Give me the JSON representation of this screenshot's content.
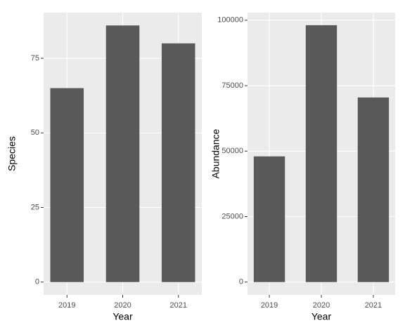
{
  "chart_data": [
    {
      "type": "bar",
      "x_label": "Year",
      "y_label": "Species",
      "categories": [
        "2019",
        "2020",
        "2021"
      ],
      "values": [
        65,
        86,
        80
      ],
      "color": "#595959",
      "ylim": [
        -4.3,
        90.3
      ],
      "yticks": [
        0,
        25,
        50,
        75
      ],
      "grid": true
    },
    {
      "type": "bar",
      "x_label": "Year",
      "y_label": "Abundance",
      "categories": [
        "2019",
        "2020",
        "2021"
      ],
      "values": [
        48000,
        98100,
        70500
      ],
      "color": "#595959",
      "ylim": [
        -4900,
        102900
      ],
      "yticks": [
        0,
        25000,
        50000,
        75000,
        100000
      ],
      "grid": true
    }
  ]
}
